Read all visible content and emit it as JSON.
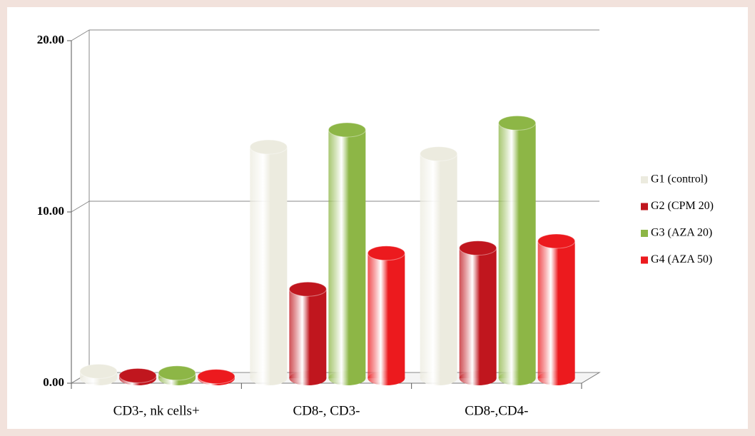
{
  "chart_data": {
    "type": "bar",
    "categories": [
      "CD3-, nk cells+",
      "CD8-, CD3-",
      "CD8-,CD4-"
    ],
    "series": [
      {
        "name": "G1 (control)",
        "color": "#ecebdf",
        "values": [
          0.4,
          13.5,
          13.1
        ]
      },
      {
        "name": "G2 (CPM 20)",
        "color": "#c0161e",
        "values": [
          0.15,
          5.2,
          7.6
        ]
      },
      {
        "name": "G3 (AZA 20)",
        "color": "#8db646",
        "values": [
          0.3,
          14.5,
          14.9
        ]
      },
      {
        "name": "G4 (AZA 50)",
        "color": "#ec1a1e",
        "values": [
          0.1,
          7.3,
          8.0
        ]
      }
    ],
    "ylim": [
      0,
      20
    ],
    "yticks": [
      {
        "value": 0,
        "label": "0.00"
      },
      {
        "value": 10,
        "label": "10.00"
      },
      {
        "value": 20,
        "label": "20.00"
      }
    ],
    "grid": true,
    "legend": "right"
  }
}
